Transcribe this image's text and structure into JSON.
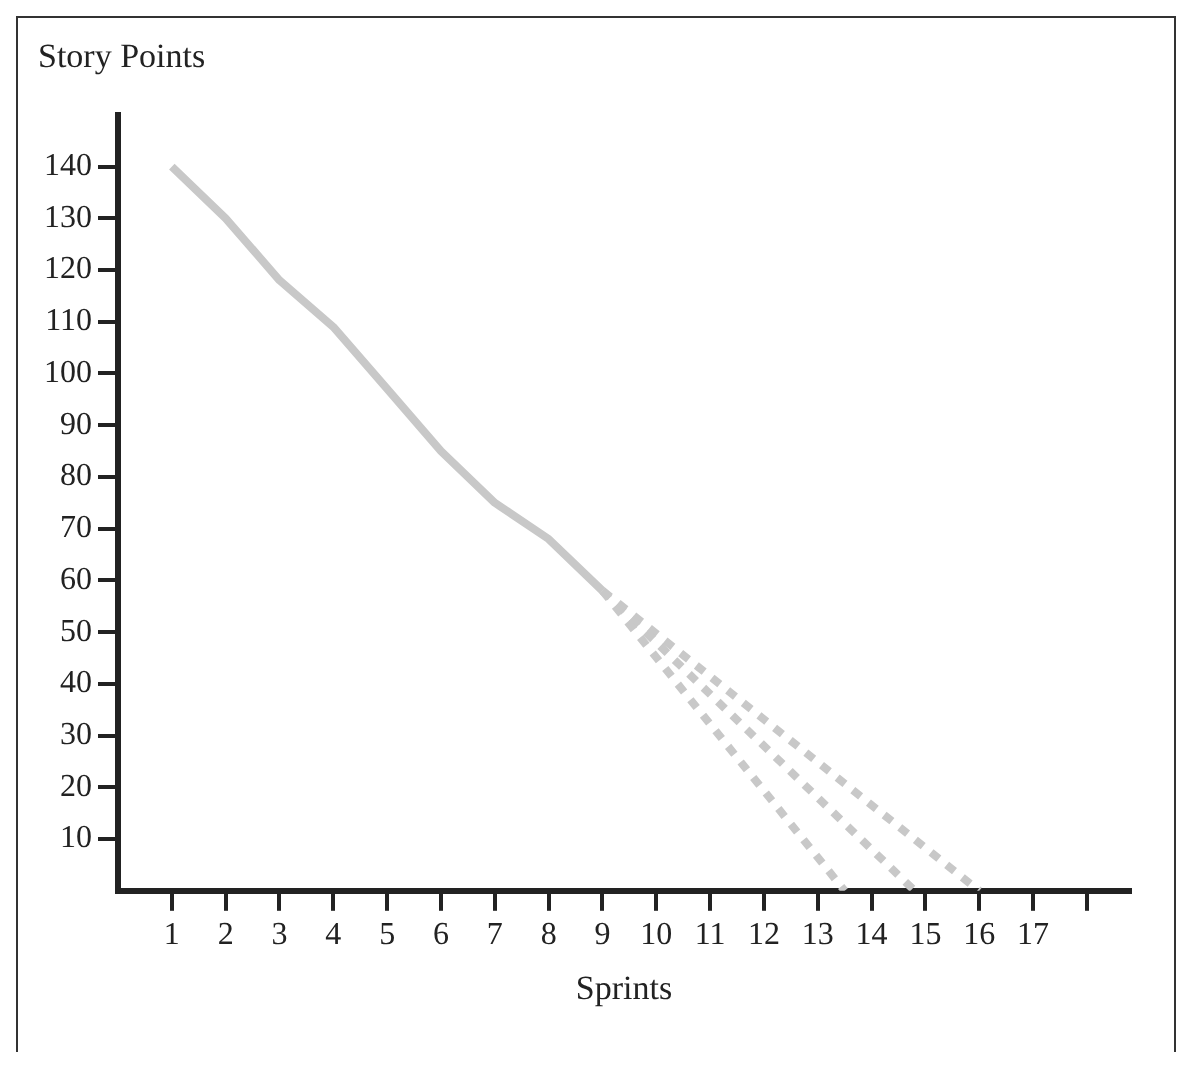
{
  "chart_data": {
    "type": "line",
    "ylabel": "Story Points",
    "xlabel": "Sprints",
    "xlim": [
      0,
      18.8
    ],
    "xticks": [
      1,
      2,
      3,
      4,
      5,
      6,
      7,
      8,
      9,
      10,
      11,
      12,
      13,
      14,
      15,
      16,
      17,
      {
        "value": 18,
        "label": null
      }
    ],
    "ylim": [
      0,
      150
    ],
    "yticks": [
      10,
      20,
      30,
      40,
      50,
      60,
      70,
      80,
      90,
      100,
      110,
      120,
      130,
      140
    ],
    "grid": false,
    "legend": false,
    "marker": "none",
    "series": [
      {
        "color": "#c8c8c8",
        "line_style": "solid",
        "x": [
          1,
          2,
          3,
          4,
          5,
          6,
          7,
          8,
          9
        ],
        "values": [
          140,
          130,
          118,
          109,
          97,
          85,
          75,
          68,
          58
        ]
      },
      {
        "color": "#c8c8c8",
        "line_style": "dotted",
        "x": [
          9,
          13.5
        ],
        "values": [
          58,
          0
        ]
      },
      {
        "color": "#c8c8c8",
        "line_style": "dotted",
        "x": [
          9,
          14.8
        ],
        "values": [
          58,
          0
        ]
      },
      {
        "color": "#c8c8c8",
        "line_style": "dotted",
        "x": [
          9,
          16
        ],
        "values": [
          58,
          0
        ]
      }
    ]
  }
}
